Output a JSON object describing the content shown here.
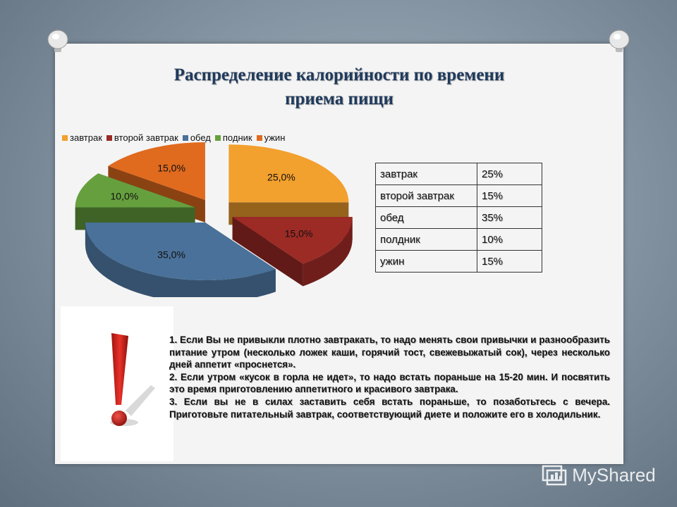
{
  "slide": {
    "title_line1": "Распределение калорийности по времени",
    "title_line2": "приема пищи"
  },
  "chart_data": {
    "type": "pie",
    "categories": [
      "завтрак",
      "второй завтрак",
      "обед",
      "подник",
      "ужин"
    ],
    "values": [
      25.0,
      15.0,
      35.0,
      10.0,
      15.0
    ],
    "data_labels": [
      "25,0%",
      "15,0%",
      "35,0%",
      "10,0%",
      "15,0%"
    ],
    "colors": [
      "#f2a02e",
      "#9c2a25",
      "#4a7199",
      "#66a03e",
      "#e06a1e"
    ],
    "legend_position": "top",
    "style": "3d-exploded"
  },
  "table": {
    "rows": [
      {
        "name": "завтрак",
        "value": "25%"
      },
      {
        "name": "второй завтрак",
        "value": "15%"
      },
      {
        "name": "обед",
        "value": "35%"
      },
      {
        "name": "полдник",
        "value": "10%"
      },
      {
        "name": "ужин",
        "value": "15%"
      }
    ]
  },
  "notes": {
    "p1": "1. Если Вы не привыкли плотно завтракать, то надо менять свои привычки и разнообразить питание утром (несколько ложек каши, горячий тост, свежевыжатый сок), через несколько дней аппетит «проснется».",
    "p2": "2. Если утром «кусок в горла не идет», то надо встать пораньше на 15-20 мин. И посвятить это время приготовлению аппетитного и красивого завтрака.",
    "p3": "3. Если вы не в силах заставить себя встать пораньше, то позаботьтесь с вечера. Приготовьте питательный завтрак, соответствующий диете и положите его в холодильник."
  },
  "watermark": {
    "text": "MyShared",
    "icon": "myshared-logo-icon"
  },
  "icons": {
    "pins": "pushpin-icon",
    "exclamation": "exclamation-icon"
  }
}
